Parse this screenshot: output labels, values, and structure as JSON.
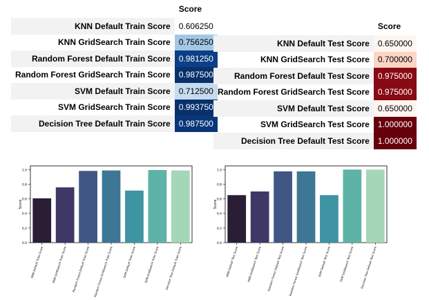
{
  "tables": [
    {
      "header": "Score",
      "rows": [
        {
          "label": "KNN Default Train Score",
          "value": "0.606250",
          "bg": "#ffffff",
          "fg": "#000000"
        },
        {
          "label": "KNN GridSearch Train Score",
          "value": "0.756250",
          "bg": "#a3c7e4",
          "fg": "#000000"
        },
        {
          "label": "Random Forest Default Train Score",
          "value": "0.981250",
          "bg": "#0c3f86",
          "fg": "#ffffff"
        },
        {
          "label": "Random Forest GridSearch Train Score",
          "value": "0.987500",
          "bg": "#08306b",
          "fg": "#ffffff"
        },
        {
          "label": "SVM Default Train Score",
          "value": "0.712500",
          "bg": "#c6dbef",
          "fg": "#000000"
        },
        {
          "label": "SVM GridSearch Train Score",
          "value": "0.993750",
          "bg": "#08306b",
          "fg": "#ffffff"
        },
        {
          "label": "Decision Tree Default Train Score",
          "value": "0.987500",
          "bg": "#0a3679",
          "fg": "#ffffff"
        }
      ]
    },
    {
      "header": "Score",
      "rows": [
        {
          "label": "KNN Default Test Score",
          "value": "0.650000",
          "bg": "#fff5f0",
          "fg": "#000000"
        },
        {
          "label": "KNN GridSearch Test Score",
          "value": "0.700000",
          "bg": "#fcd5c4",
          "fg": "#000000"
        },
        {
          "label": "Random Forest Default Test Score",
          "value": "0.975000",
          "bg": "#870a14",
          "fg": "#ffffff"
        },
        {
          "label": "Random Forest GridSearch Test Score",
          "value": "0.975000",
          "bg": "#870a14",
          "fg": "#ffffff"
        },
        {
          "label": "SVM Default Test Score",
          "value": "0.650000",
          "bg": "#fff5f0",
          "fg": "#000000"
        },
        {
          "label": "SVM GridSearch Test Score",
          "value": "1.000000",
          "bg": "#67000d",
          "fg": "#ffffff"
        },
        {
          "label": "Decision Tree Default Test Score",
          "value": "1.000000",
          "bg": "#67000d",
          "fg": "#ffffff"
        }
      ]
    }
  ],
  "chart_data": [
    {
      "type": "bar",
      "categories": [
        "KNN Default Train Score",
        "KNN GridSearch Train Score",
        "Random Forest Default Train Score",
        "Random Forest GridSearch Train Score",
        "SVM Default Train Score",
        "SVM GridSearch Train Score",
        "Decision Tree Default Train Score"
      ],
      "values": [
        0.60625,
        0.75625,
        0.98125,
        0.9875,
        0.7125,
        0.99375,
        0.9875
      ],
      "colors": [
        "#2a1e36",
        "#3f3766",
        "#405684",
        "#3d7795",
        "#3e94a2",
        "#5db4a6",
        "#a6d6b8"
      ],
      "ylabel": "Score",
      "ylim": [
        0,
        1.05
      ],
      "yticks": [
        "0.0",
        "0.2",
        "0.4",
        "0.6",
        "0.8",
        "1.0"
      ]
    },
    {
      "type": "bar",
      "categories": [
        "KNN Default Test Score",
        "KNN GridSearch Test Score",
        "Random Forest Default Test Score",
        "Random Forest GridSearch Test Score",
        "SVM Default Test Score",
        "SVM GridSearch Test Score",
        "Decision Tree Default Test Score"
      ],
      "values": [
        0.65,
        0.7,
        0.975,
        0.975,
        0.65,
        1.0,
        1.0
      ],
      "colors": [
        "#2a1e36",
        "#3f3766",
        "#405684",
        "#3d7795",
        "#3e94a2",
        "#5db4a6",
        "#a6d6b8"
      ],
      "ylabel": "Score",
      "ylim": [
        0,
        1.05
      ],
      "yticks": [
        "0.0",
        "0.2",
        "0.4",
        "0.6",
        "0.8",
        "1.0"
      ]
    }
  ]
}
